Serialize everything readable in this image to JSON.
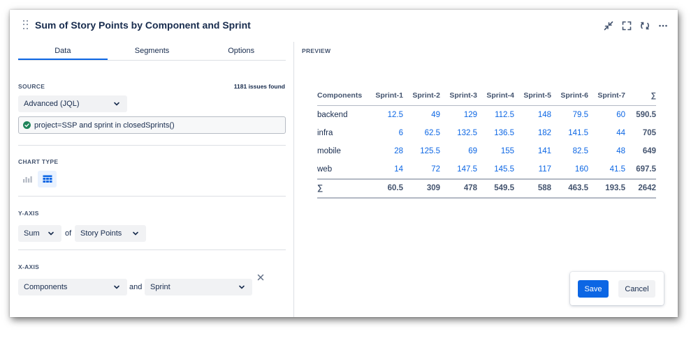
{
  "header": {
    "title": "Sum of Story Points by Component and Sprint"
  },
  "header_icons": [
    "minimize-icon",
    "fullscreen-icon",
    "refresh-icon",
    "more-icon"
  ],
  "tabs": [
    {
      "label": "Data",
      "active": true
    },
    {
      "label": "Segments",
      "active": false
    },
    {
      "label": "Options",
      "active": false
    }
  ],
  "source": {
    "label": "SOURCE",
    "issues_found": "1181 issues found",
    "mode": "Advanced (JQL)",
    "query": "project=SSP and sprint in closedSprints()"
  },
  "chart_type": {
    "label": "CHART TYPE",
    "options": [
      "bar-chart-icon",
      "table-icon"
    ],
    "selected": "table-icon"
  },
  "y_axis": {
    "label": "Y-AXIS",
    "aggregation": "Sum",
    "of": "of",
    "field": "Story Points"
  },
  "x_axis": {
    "label": "X-AXIS",
    "field": "Components",
    "and": "and",
    "group_by": "Sprint"
  },
  "preview": {
    "label": "PREVIEW"
  },
  "table": {
    "headers": [
      "Components",
      "Sprint-1",
      "Sprint-2",
      "Sprint-3",
      "Sprint-4",
      "Sprint-5",
      "Sprint-6",
      "Sprint-7",
      "∑"
    ],
    "rows": [
      [
        "backend",
        "12.5",
        "49",
        "129",
        "112.5",
        "148",
        "79.5",
        "60",
        "590.5"
      ],
      [
        "infra",
        "6",
        "62.5",
        "132.5",
        "136.5",
        "182",
        "141.5",
        "44",
        "705"
      ],
      [
        "mobile",
        "28",
        "125.5",
        "69",
        "155",
        "141",
        "82.5",
        "48",
        "649"
      ],
      [
        "web",
        "14",
        "72",
        "147.5",
        "145.5",
        "117",
        "160",
        "41.5",
        "697.5"
      ]
    ],
    "totals": [
      "∑",
      "60.5",
      "309",
      "478",
      "549.5",
      "588",
      "463.5",
      "193.5",
      "2642"
    ]
  },
  "actions": {
    "save": "Save",
    "cancel": "Cancel"
  },
  "colors": {
    "accent": "#0c66e4",
    "text": "#172b4d",
    "subtle": "#44546f",
    "success": "#1f845a"
  }
}
